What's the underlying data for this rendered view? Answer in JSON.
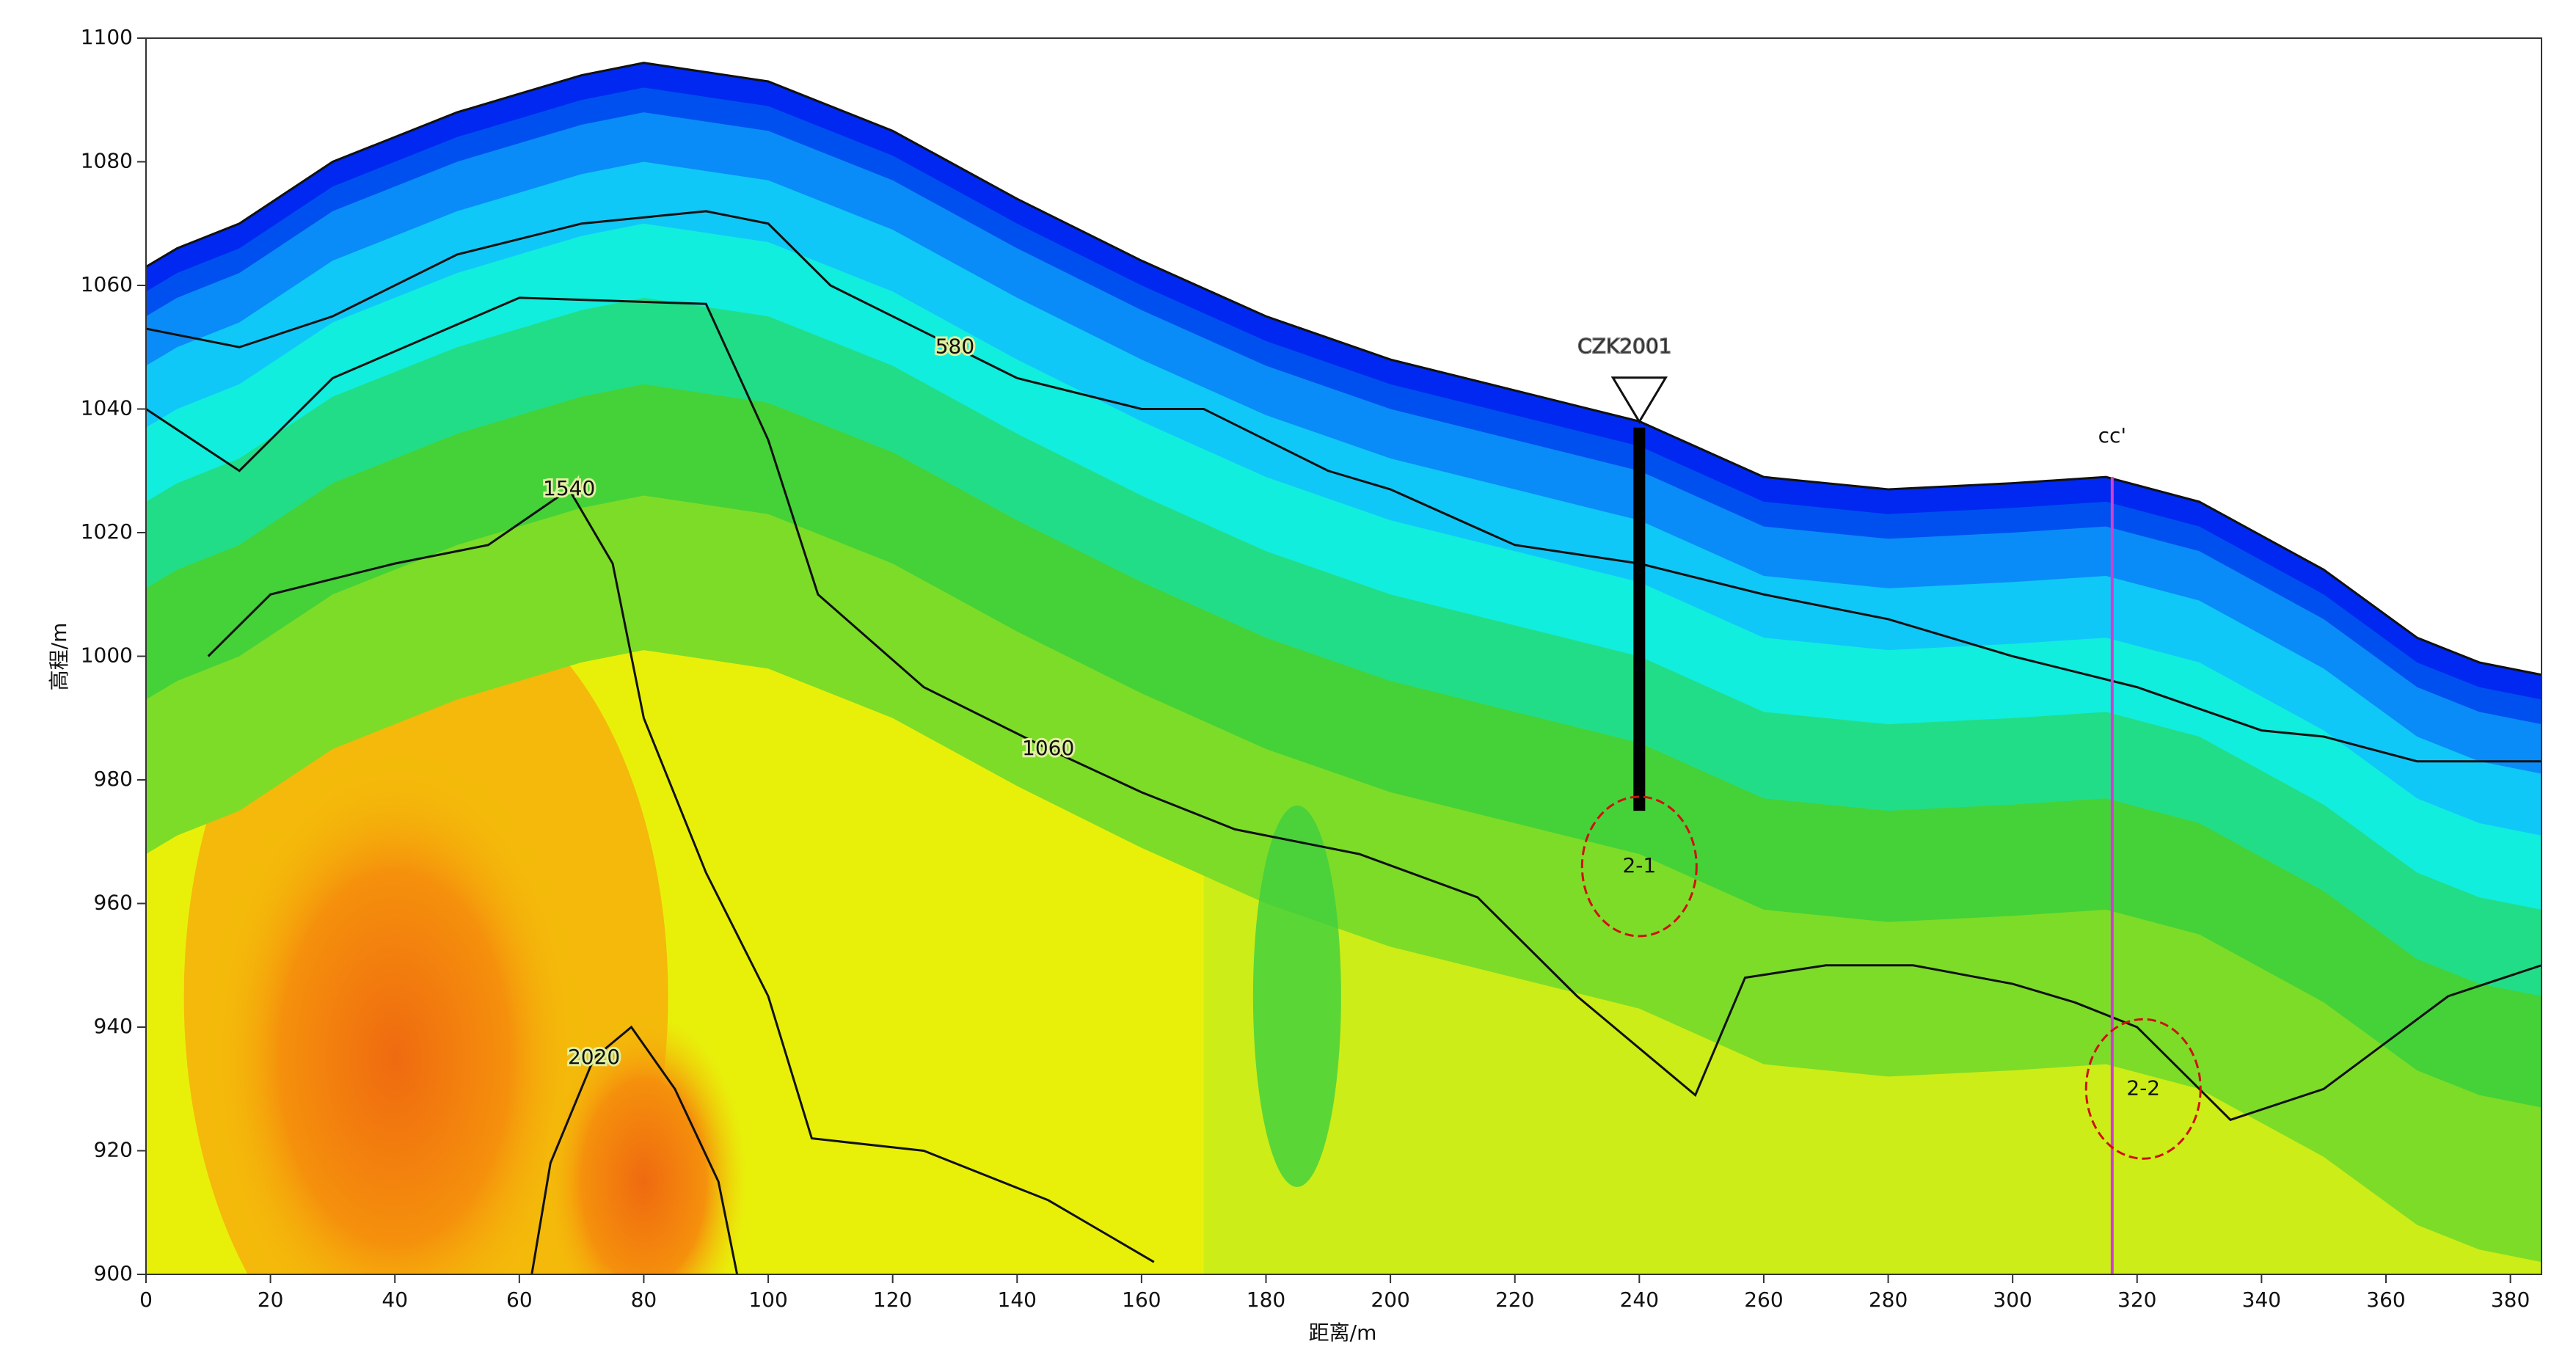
{
  "chart_data": {
    "type": "contour",
    "xlabel": "距离/m",
    "ylabel": "高程/m",
    "xlim": [
      0,
      385
    ],
    "xticks": [
      0,
      20,
      40,
      60,
      80,
      100,
      120,
      140,
      160,
      180,
      200,
      220,
      240,
      260,
      280,
      300,
      320,
      340,
      360,
      380
    ],
    "ylim": [
      900,
      1100
    ],
    "yticks": [
      900,
      920,
      940,
      960,
      980,
      1000,
      1020,
      1040,
      1060,
      1080,
      1100
    ],
    "surface": {
      "x": [
        0,
        5,
        15,
        30,
        50,
        70,
        80,
        100,
        120,
        140,
        160,
        180,
        200,
        220,
        240,
        260,
        280,
        300,
        315,
        330,
        350,
        365,
        375,
        385
      ],
      "y": [
        1063,
        1066,
        1070,
        1080,
        1088,
        1094,
        1096,
        1093,
        1085,
        1074,
        1064,
        1055,
        1048,
        1043,
        1038,
        1029,
        1027,
        1028,
        1029,
        1025,
        1014,
        1003,
        999,
        997
      ]
    },
    "contours": [
      {
        "level": 580,
        "x": [
          0,
          15,
          30,
          50,
          70,
          90,
          100,
          110,
          130,
          140,
          160,
          170,
          190,
          200,
          220,
          240,
          260,
          280,
          300,
          320,
          340,
          350,
          365,
          385
        ],
        "y": [
          1053,
          1050,
          1055,
          1065,
          1070,
          1072,
          1070,
          1060,
          1050,
          1045,
          1040,
          1040,
          1030,
          1027,
          1018,
          1015,
          1010,
          1006,
          1000,
          995,
          988,
          987,
          983,
          983
        ]
      },
      {
        "level": 1060,
        "x": [
          0,
          15,
          30,
          60,
          90,
          100,
          108,
          125,
          145,
          160,
          175,
          195,
          214,
          230,
          249,
          257,
          270,
          284,
          300,
          310,
          320,
          335,
          350,
          370,
          385
        ],
        "y": [
          1040,
          1030,
          1045,
          1058,
          1057,
          1035,
          1010,
          995,
          985,
          978,
          972,
          968,
          961,
          945,
          929,
          948,
          950,
          950,
          947,
          944,
          940,
          925,
          930,
          945,
          950
        ]
      },
      {
        "level": 1540,
        "x": [
          10,
          20,
          40,
          55,
          68,
          75,
          80,
          90,
          100,
          107,
          125,
          145,
          162
        ],
        "y": [
          1000,
          1010,
          1015,
          1018,
          1027,
          1015,
          990,
          965,
          945,
          922,
          920,
          912,
          902
        ]
      },
      {
        "level": 2020,
        "x": [
          62,
          65,
          72,
          78,
          85,
          92,
          95
        ],
        "y": [
          900,
          918,
          935,
          940,
          930,
          915,
          900
        ]
      }
    ],
    "borehole": {
      "label": "CZK2001",
      "x": 240,
      "top": 1037,
      "bottom": 975
    },
    "section_line": {
      "label": "cc'",
      "x": 316,
      "top": 1029,
      "bottom": 900,
      "color": "#d040d0"
    },
    "anomalies": [
      {
        "label": "2-1",
        "x": 240,
        "y": 966,
        "color": "#d01010"
      },
      {
        "label": "2-2",
        "x": 321,
        "y": 930,
        "color": "#d01010"
      }
    ]
  }
}
